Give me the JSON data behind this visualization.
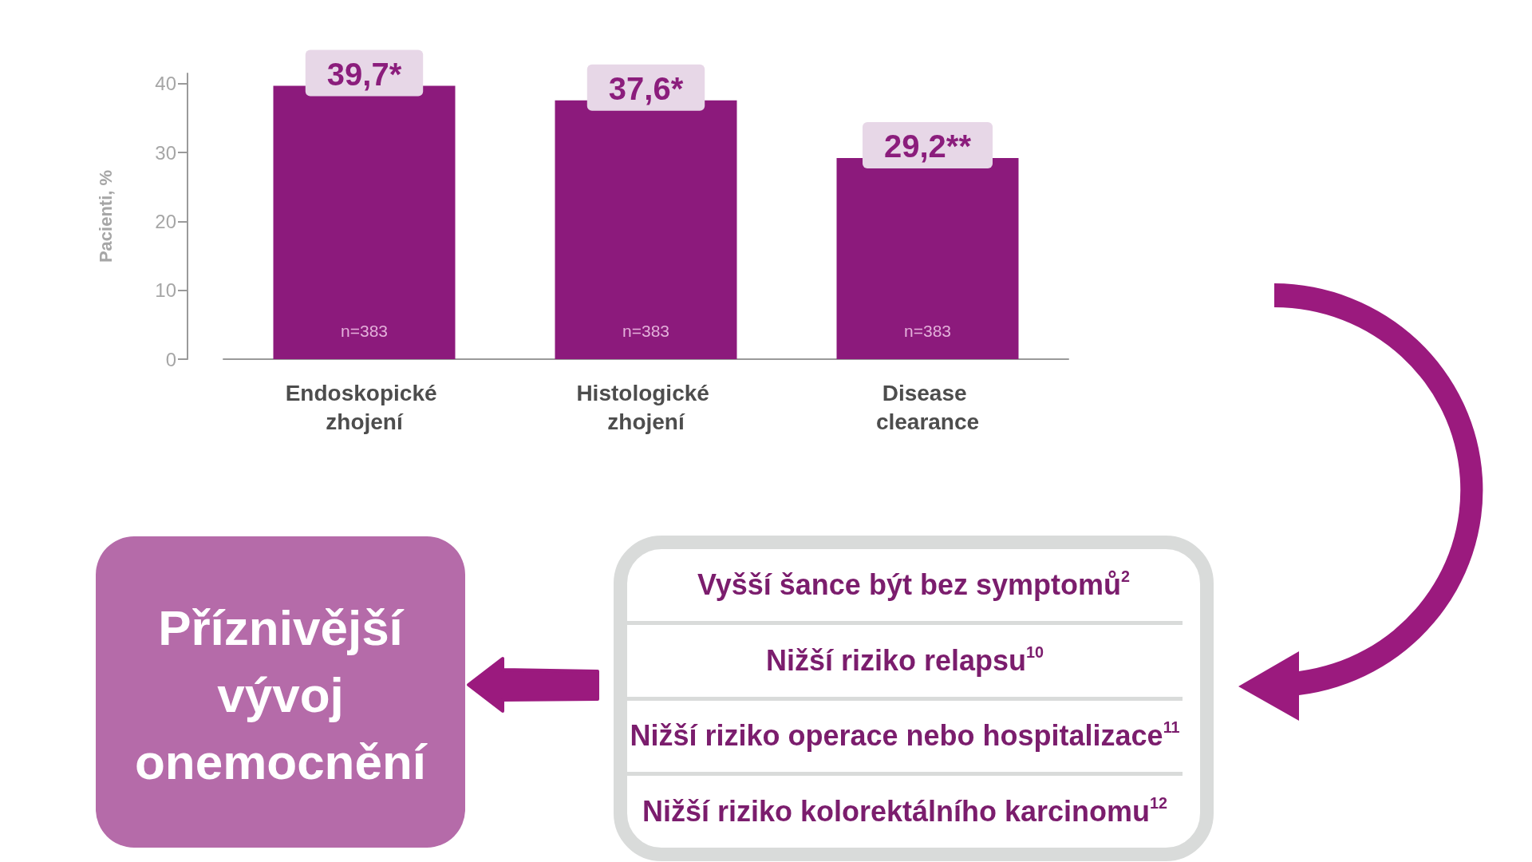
{
  "chart_data": [
    {
      "type": "bar",
      "ylabel": "Pacienti, %",
      "categories": [
        "Endoskopické zhojení",
        "Histologické zhojení",
        "Disease clearance"
      ],
      "values": [
        39.7,
        37.6,
        29.2
      ],
      "value_labels": [
        "39,7*",
        "37,6*",
        "29,2**"
      ],
      "color": "#8c1a7c",
      "ylim": [
        0,
        41.5
      ],
      "yticks": [
        0,
        10,
        20,
        30,
        40
      ],
      "grid": false,
      "annotations": [
        "n=383",
        "n=383",
        "n=383"
      ]
    },
    {
      "type": "other",
      "title": "Příznivější vývoj onemocnění",
      "annotations": [
        "Vyšší šance být bez symptomů$^{2}$",
        "Nižší riziko relapsu$^{10}$",
        "Nižší riziko operace nebo hospitalizace$^{11}$",
        "Nižší riziko kolorektálního karcinomu$^{12}$"
      ]
    }
  ]
}
